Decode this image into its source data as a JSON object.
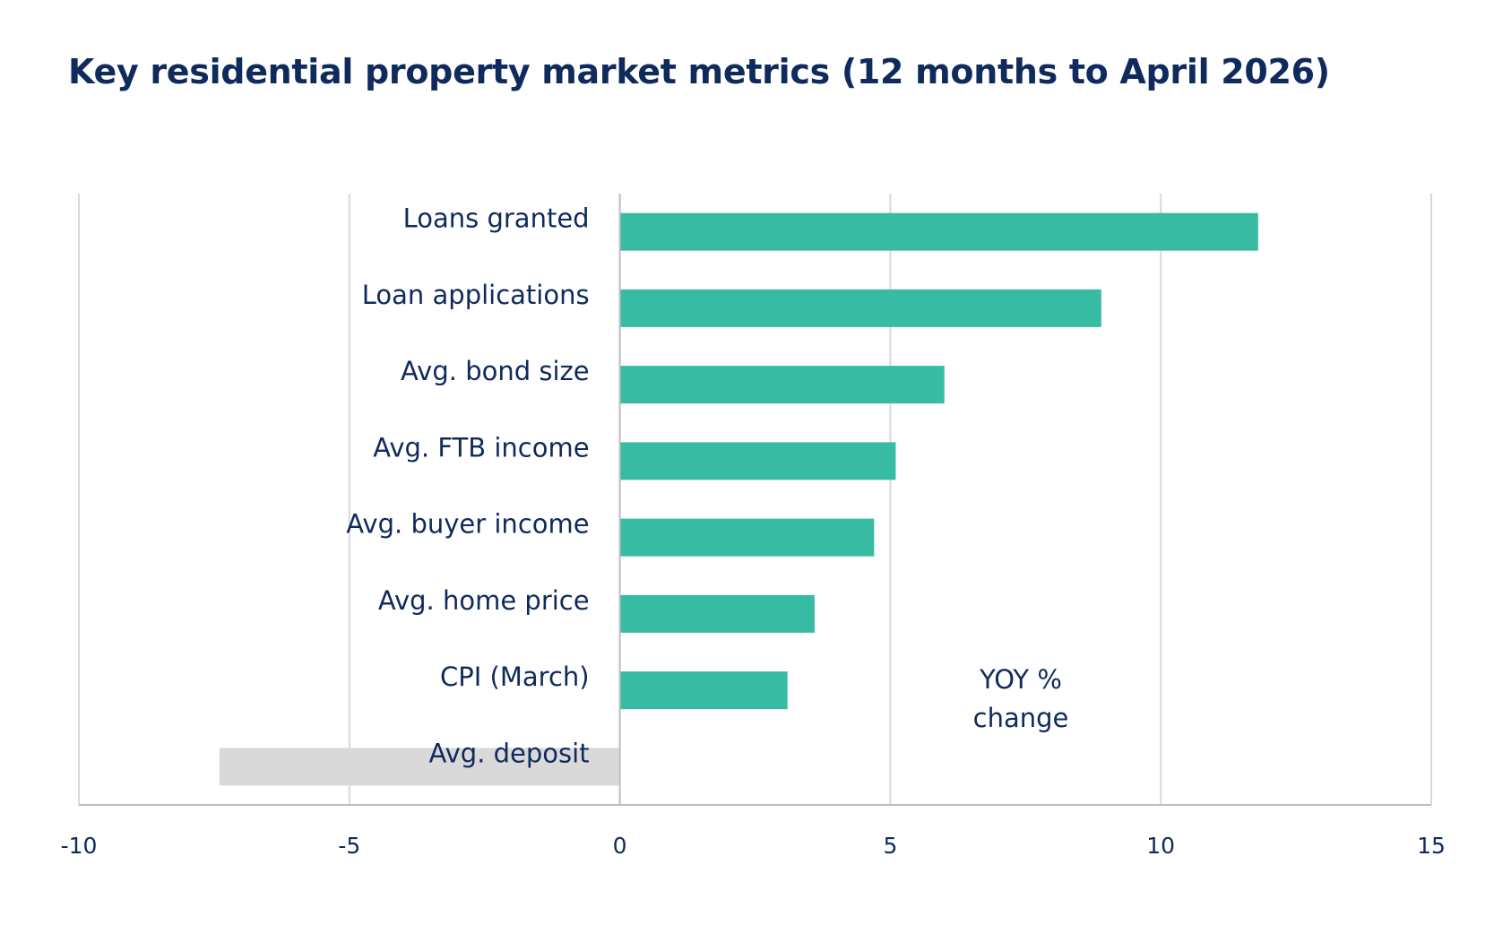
{
  "chart_data": {
    "type": "bar",
    "orientation": "horizontal",
    "title": "Key residential property market metrics (12 months to April 2026)",
    "categories": [
      "Loans granted",
      "Loan applications",
      "Avg. bond size",
      "Avg. FTB income",
      "Avg. buyer income",
      "Avg. home price",
      "CPI (March)",
      "Avg. deposit"
    ],
    "values": [
      11.8,
      8.9,
      6.0,
      5.1,
      4.7,
      3.6,
      3.1,
      -7.4
    ],
    "xlim": [
      -10,
      15
    ],
    "xticks": [
      -10,
      -5,
      0,
      5,
      10,
      15
    ],
    "xtick_labels": [
      "-10",
      "-5",
      "0",
      "5",
      "10",
      "15"
    ],
    "annotation": [
      "YOY %",
      "change"
    ],
    "grid": "vertical",
    "colors": {
      "positive": "#38bba3",
      "negative": "#d9d9d9",
      "gridline": "#d9d9d9",
      "axis": "#bfbfbf",
      "text": "#0f2a5c"
    }
  }
}
